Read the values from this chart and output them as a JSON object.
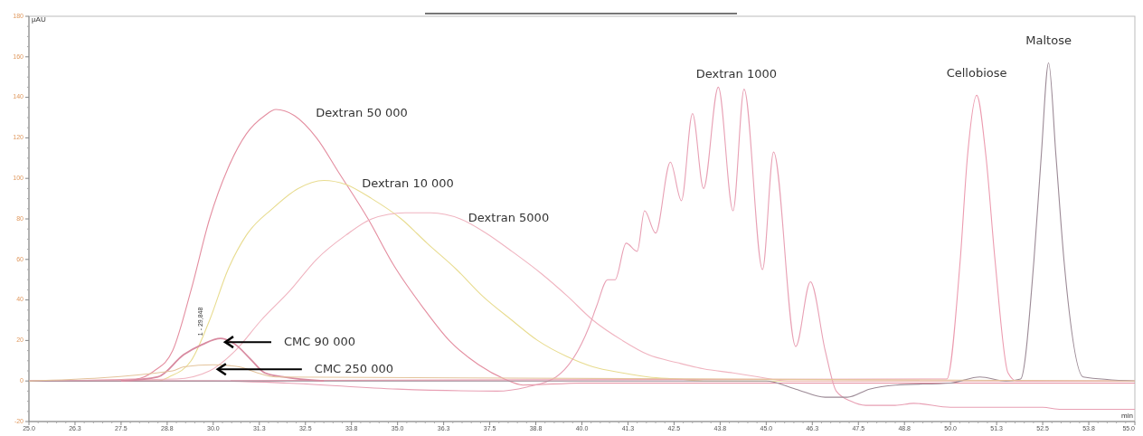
{
  "chart_data": {
    "type": "line",
    "xlabel": "min",
    "ylabel": "µAU",
    "xlim": [
      25,
      55
    ],
    "ylim": [
      -20,
      180
    ],
    "xticks": [
      {
        "value": 25,
        "label": "25.0"
      },
      {
        "value": 26.25,
        "label": "26.3"
      },
      {
        "value": 27.5,
        "label": "27.5"
      },
      {
        "value": 28.75,
        "label": "28.8"
      },
      {
        "value": 30,
        "label": "30.0"
      },
      {
        "value": 31.25,
        "label": "31.3"
      },
      {
        "value": 32.5,
        "label": "32.5"
      },
      {
        "value": 33.75,
        "label": "33.8"
      },
      {
        "value": 35,
        "label": "35.0"
      },
      {
        "value": 36.25,
        "label": "36.3"
      },
      {
        "value": 37.5,
        "label": "37.5"
      },
      {
        "value": 38.75,
        "label": "38.8"
      },
      {
        "value": 40,
        "label": "40.0"
      },
      {
        "value": 41.25,
        "label": "41.3"
      },
      {
        "value": 42.5,
        "label": "42.5"
      },
      {
        "value": 43.75,
        "label": "43.8"
      },
      {
        "value": 45,
        "label": "45.0"
      },
      {
        "value": 46.25,
        "label": "46.3"
      },
      {
        "value": 47.5,
        "label": "47.5"
      },
      {
        "value": 48.75,
        "label": "48.8"
      },
      {
        "value": 50,
        "label": "50.0"
      },
      {
        "value": 51.25,
        "label": "51.3"
      },
      {
        "value": 52.5,
        "label": "52.5"
      },
      {
        "value": 53.75,
        "label": "53.8"
      },
      {
        "value": 55,
        "label": "55.0"
      }
    ],
    "yticks": [
      -20,
      0,
      20,
      40,
      60,
      80,
      100,
      120,
      140,
      160,
      180
    ],
    "grid": false,
    "legend": false,
    "marker": "none",
    "line_style": "solid",
    "annotations": [
      {
        "text": "1 - 29,848",
        "x": 29.848,
        "y": 21
      }
    ],
    "series": [
      {
        "name": "Dextran 50 000",
        "color": "#e48ea0",
        "x": [
          25,
          27.9,
          28.4,
          28.9,
          29.4,
          29.9,
          30.4,
          30.9,
          31.4,
          31.7,
          32.2,
          32.8,
          33.4,
          34.2,
          34.9,
          35.7,
          36.4,
          37.2,
          37.9,
          38.4,
          40,
          55
        ],
        "values": [
          0,
          1,
          5,
          15,
          45,
          80,
          105,
          122,
          131,
          134,
          131,
          120,
          103,
          80,
          57,
          36,
          20,
          8,
          1,
          -2,
          -1,
          -1
        ]
      },
      {
        "name": "Dextran 10 000",
        "color": "#e8dc90",
        "x": [
          25,
          28.5,
          28.8,
          29.4,
          29.9,
          30.4,
          30.9,
          31.6,
          32.3,
          33,
          33.6,
          34.3,
          35.1,
          35.8,
          36.6,
          37.3,
          38.1,
          38.8,
          39.6,
          40.3,
          41.1,
          41.8,
          42.6,
          43.3,
          55
        ],
        "values": [
          0,
          0,
          2,
          10,
          30,
          55,
          72,
          85,
          95,
          99,
          97,
          90,
          80,
          68,
          55,
          42,
          30,
          20,
          12,
          7,
          4,
          2,
          1,
          0,
          0
        ]
      },
      {
        "name": "Dextran 5000",
        "color": "#f0b4c0",
        "x": [
          25,
          29,
          29.9,
          30.6,
          31.3,
          32.1,
          32.8,
          33.6,
          34.3,
          35.2,
          35.9,
          36.7,
          37.4,
          38.1,
          38.9,
          39.6,
          40.3,
          41.1,
          41.8,
          42.6,
          43.3,
          44.1,
          44.8,
          45.6,
          55
        ],
        "values": [
          0,
          1,
          5,
          15,
          30,
          45,
          60,
          72,
          80,
          83,
          83,
          80,
          73,
          64,
          53,
          42,
          30,
          20,
          13,
          9,
          6,
          4,
          2,
          0,
          0
        ]
      },
      {
        "name": "Dextran 1000",
        "color": "#e8a0b4",
        "x": [
          25,
          30,
          32,
          35,
          37.7,
          38.5,
          39.3,
          40.2,
          40.4,
          40.7,
          40.9,
          41.2,
          41.5,
          41.7,
          42,
          42.4,
          42.7,
          43,
          43.3,
          43.7,
          44.1,
          44.4,
          44.9,
          45.2,
          45.8,
          46.2,
          46.6,
          46.9,
          47.3,
          47.7,
          48.5,
          49,
          50,
          52.5,
          53,
          55
        ],
        "values": [
          0,
          0,
          -1,
          -4,
          -5,
          -3,
          2,
          27,
          37,
          50,
          50,
          68,
          64,
          84,
          73,
          108,
          89,
          132,
          95,
          145,
          84,
          144,
          55,
          113,
          17,
          49,
          15,
          -5,
          -10,
          -12,
          -12,
          -11,
          -13,
          -13,
          -14,
          -14
        ]
      },
      {
        "name": "Cellobiose",
        "color": "#ec9cb0",
        "x": [
          25,
          49.9,
          50.26,
          50.46,
          50.71,
          50.96,
          51.21,
          51.56,
          51.8,
          55
        ],
        "values": [
          0,
          1,
          59,
          111,
          141,
          111,
          59,
          4,
          0,
          0
        ]
      },
      {
        "name": "Maltose",
        "color": "#9c8a96",
        "x": [
          25,
          45,
          45.8,
          46.6,
          47.2,
          47.8,
          48.5,
          50,
          50.8,
          51.5,
          51.9,
          52.26,
          52.46,
          52.66,
          52.86,
          53.08,
          53.6,
          55
        ],
        "values": [
          0,
          0,
          -4,
          -8,
          -8,
          -4,
          -2,
          -1,
          2,
          0,
          1,
          59,
          111,
          157,
          111,
          59,
          2,
          0
        ]
      },
      {
        "name": "CMC 90 000",
        "color": "#d88aa0",
        "x": [
          27.5,
          28.5,
          29.2,
          29.7,
          30.2,
          30.6,
          31,
          31.4,
          31.9,
          33
        ],
        "values": [
          0,
          2,
          13,
          18,
          21,
          18,
          11,
          4,
          2,
          0
        ]
      },
      {
        "name": "CMC 250 000",
        "color": "#e4c49c",
        "x": [
          25,
          28.9,
          29.2,
          30,
          30.7,
          31.2,
          31.7,
          55
        ],
        "values": [
          0,
          5,
          7,
          8,
          7,
          4,
          2,
          0
        ]
      }
    ]
  }
}
